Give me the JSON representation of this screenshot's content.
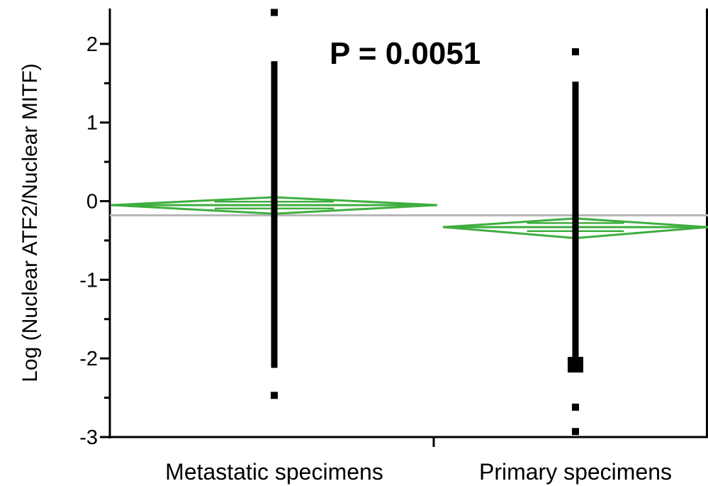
{
  "chart_data": {
    "type": "scatter",
    "ylabel": "Log (Nuclear ATF2/Nuclear MITF)",
    "xlabel": "",
    "ylim": [
      -3,
      2.45
    ],
    "yticks": [
      2,
      1,
      0,
      -1,
      -2,
      -3
    ],
    "ytick_labels": [
      "2",
      "1",
      "0",
      "-1",
      "-2",
      "-3"
    ],
    "minor_ytick_step": 0.5,
    "categories": [
      "Metastatic specimens",
      "Primary specimens"
    ],
    "grand_mean": -0.18,
    "annotation": "P = 0.0051",
    "mean_diamond_color": "#3fae3f",
    "grand_mean_color": "#b8b8b8",
    "point_color": "#000000",
    "groups": [
      {
        "name": "Metastatic specimens",
        "mean": -0.05,
        "ci_upper": 0.05,
        "ci_lower": -0.16,
        "dense_range": [
          -2.12,
          1.78
        ],
        "outliers": [
          2.4,
          -2.47
        ]
      },
      {
        "name": "Primary specimens",
        "mean": -0.33,
        "ci_upper": -0.22,
        "ci_lower": -0.47,
        "dense_range": [
          -2.12,
          1.52
        ],
        "outliers": [
          1.9,
          -2.62,
          -2.93
        ],
        "highlight_point": -2.08
      }
    ]
  }
}
